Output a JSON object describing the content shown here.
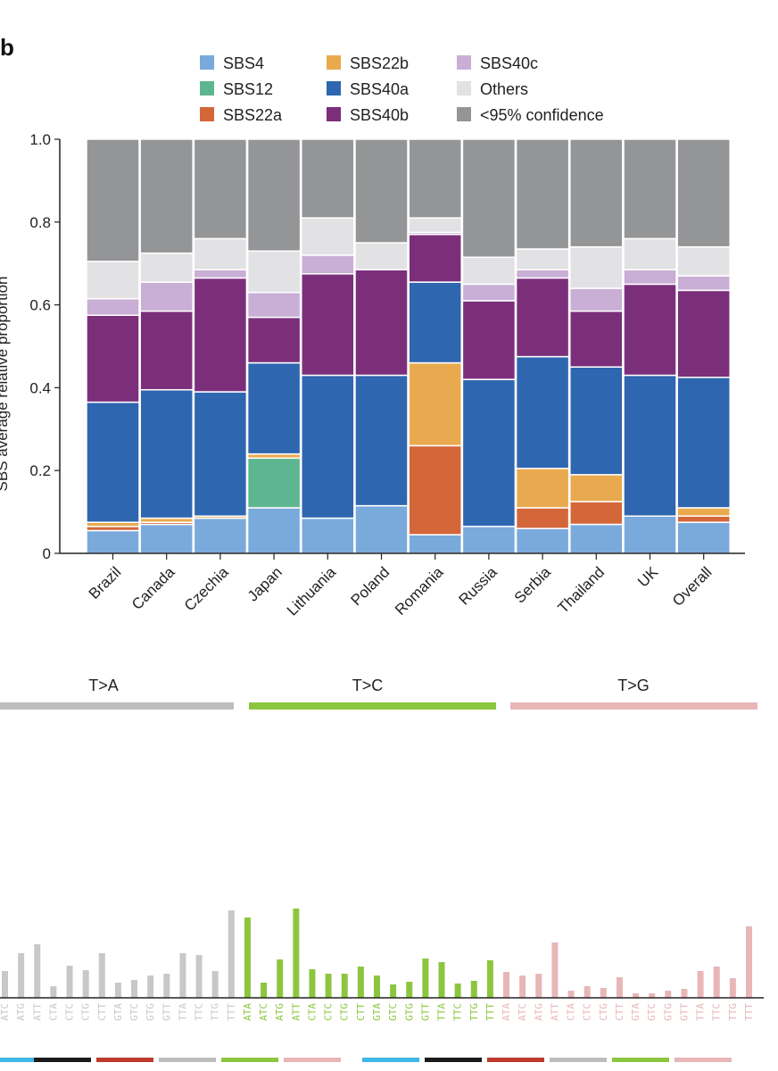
{
  "panel_letter": "b",
  "chart_data": [
    {
      "type": "bar",
      "stacked": true,
      "title": "",
      "xlabel": "",
      "ylabel": "SBS average relative proportion",
      "ylim": [
        0,
        1.0
      ],
      "yticks": [
        "0",
        "0.2",
        "0.4",
        "0.6",
        "0.8",
        "1.0"
      ],
      "categories": [
        "Brazil",
        "Canada",
        "Czechia",
        "Japan",
        "Lithuania",
        "Poland",
        "Romania",
        "Russia",
        "Serbia",
        "Thailand",
        "UK",
        "Overall"
      ],
      "legend_labels": [
        "SBS4",
        "SBS12",
        "SBS22a",
        "SBS22b",
        "SBS40a",
        "SBS40b",
        "SBS40c",
        "Others",
        "<95% confidence"
      ],
      "series": [
        {
          "name": "SBS4",
          "color": "#7aa9dc",
          "values": [
            0.055,
            0.07,
            0.085,
            0.11,
            0.085,
            0.115,
            0.045,
            0.065,
            0.06,
            0.07,
            0.09,
            0.075
          ]
        },
        {
          "name": "SBS12",
          "color": "#5db68f",
          "values": [
            0,
            0,
            0,
            0.12,
            0,
            0,
            0,
            0,
            0,
            0,
            0,
            0
          ]
        },
        {
          "name": "SBS22a",
          "color": "#d4673a",
          "values": [
            0.01,
            0.005,
            0,
            0,
            0,
            0,
            0.215,
            0,
            0.05,
            0.055,
            0,
            0.015
          ]
        },
        {
          "name": "SBS22b",
          "color": "#e9aa4f",
          "values": [
            0.01,
            0.01,
            0.005,
            0.01,
            0,
            0,
            0.2,
            0,
            0.095,
            0.065,
            0,
            0.02
          ]
        },
        {
          "name": "SBS40a",
          "color": "#2f66b0",
          "values": [
            0.29,
            0.31,
            0.3,
            0.22,
            0.345,
            0.315,
            0.195,
            0.355,
            0.27,
            0.26,
            0.34,
            0.315
          ]
        },
        {
          "name": "SBS40b",
          "color": "#7b2f7b",
          "values": [
            0.21,
            0.19,
            0.275,
            0.11,
            0.245,
            0.255,
            0.115,
            0.19,
            0.19,
            0.135,
            0.22,
            0.21
          ]
        },
        {
          "name": "SBS40c",
          "color": "#c9aed6",
          "values": [
            0.04,
            0.07,
            0.02,
            0.06,
            0.045,
            0,
            0.005,
            0.04,
            0.02,
            0.055,
            0.035,
            0.035
          ]
        },
        {
          "name": "Others",
          "color": "#e2e2e4",
          "values": [
            0.09,
            0.07,
            0.075,
            0.1,
            0.09,
            0.065,
            0.035,
            0.065,
            0.05,
            0.1,
            0.075,
            0.07
          ]
        },
        {
          "name": "<95% confidence",
          "color": "#949597",
          "values": [
            0.295,
            0.275,
            0.24,
            0.27,
            0.19,
            0.25,
            0.19,
            0.285,
            0.265,
            0.26,
            0.24,
            0.26
          ]
        }
      ]
    },
    {
      "type": "bar",
      "title": "",
      "group_labels": [
        "T>A",
        "T>C",
        "T>G"
      ],
      "group_colors": [
        "#bdbdbd",
        "#8cc63f",
        "#e8b6b6"
      ],
      "bottom_strip_colors": [
        "#3fb8e8",
        "#1b1b1b",
        "#c0392b",
        "#bdbdbd",
        "#8cc63f",
        "#e8b6b6",
        "#3fb8e8",
        "#1b1b1b",
        "#c0392b",
        "#bdbdbd",
        "#8cc63f",
        "#e8b6b6"
      ],
      "series": [
        {
          "name": "T>A",
          "color": "#c8c8c8",
          "categories": [
            "ATC",
            "ATG",
            "ATT",
            "CTA",
            "CTC",
            "CTG",
            "CTT",
            "GTA",
            "GTC",
            "GTG",
            "GTT",
            "TTA",
            "TTC",
            "TTG",
            "TTT"
          ],
          "values": [
            0.3,
            0.5,
            0.6,
            0.13,
            0.36,
            0.31,
            0.5,
            0.17,
            0.2,
            0.25,
            0.27,
            0.5,
            0.48,
            0.3,
            0.98
          ]
        },
        {
          "name": "T>C",
          "color": "#8cc63f",
          "categories": [
            "ATA",
            "ATC",
            "ATG",
            "ATT",
            "CTA",
            "CTC",
            "CTG",
            "CTT",
            "GTA",
            "GTC",
            "GTG",
            "GTT",
            "TTA",
            "TTC",
            "TTG",
            "TTT"
          ],
          "values": [
            0.9,
            0.17,
            0.43,
            1.0,
            0.32,
            0.27,
            0.27,
            0.35,
            0.25,
            0.15,
            0.18,
            0.44,
            0.4,
            0.16,
            0.19,
            0.42
          ]
        },
        {
          "name": "T>G",
          "color": "#e8b6b6",
          "categories": [
            "ATA",
            "ATC",
            "ATG",
            "ATT",
            "CTA",
            "CTC",
            "CTG",
            "CTT",
            "GTA",
            "GTC",
            "GTG",
            "GTT",
            "TTA",
            "TTC",
            "TTG",
            "TTT"
          ],
          "values": [
            0.29,
            0.25,
            0.27,
            0.62,
            0.08,
            0.13,
            0.11,
            0.23,
            0.05,
            0.05,
            0.08,
            0.1,
            0.3,
            0.35,
            0.22,
            0.8
          ]
        }
      ]
    }
  ]
}
